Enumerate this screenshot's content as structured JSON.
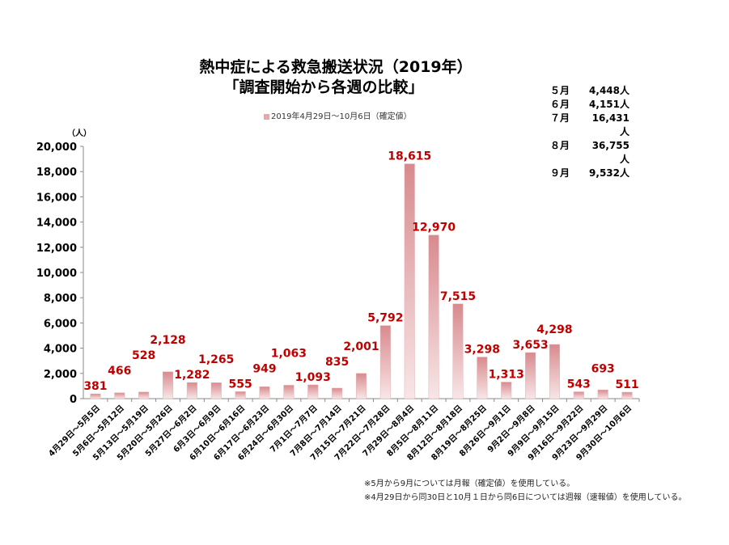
{
  "chart_data": {
    "type": "bar",
    "title": "熱中症による救急搬送状況（2019年）",
    "subtitle": "「調査開始から各週の比較」",
    "legend": "2019年4月29日～10月6日（確定値）",
    "legend_position": "top",
    "ylabel": "（人）",
    "ylim": [
      0,
      20000
    ],
    "yticks": [
      "0",
      "2,000",
      "4,000",
      "6,000",
      "8,000",
      "10,000",
      "12,000",
      "14,000",
      "16,000",
      "18,000",
      "20,000"
    ],
    "grid": false,
    "categories": [
      "4月29日～5月5日",
      "5月6日～5月12日",
      "5月13日～5月19日",
      "5月20日～5月26日",
      "5月27日～6月2日",
      "6月3日～6月9日",
      "6月10日～6月16日",
      "6月17日～6月23日",
      "6月24日～6月30日",
      "7月1日～7月7日",
      "7月8日～7月14日",
      "7月15日～7月21日",
      "7月22日～7月28日",
      "7月29日～8月4日",
      "8月5日～8月11日",
      "8月12日～8月18日",
      "8月19日～8月25日",
      "8月26日～9月1日",
      "9月2日～9月8日",
      "9月9日～9月15日",
      "9月16日～9月22日",
      "9月23日～9月29日",
      "9月30日～10月6日"
    ],
    "values": [
      381,
      466,
      528,
      2128,
      1282,
      1265,
      555,
      949,
      1063,
      1093,
      835,
      2001,
      5792,
      18615,
      12970,
      7515,
      3298,
      1313,
      3653,
      4298,
      543,
      693,
      511
    ],
    "labels": [
      "381",
      "466",
      "528",
      "2,128",
      "1,282",
      "1,265",
      "555",
      "949",
      "1,063",
      "1,093",
      "835",
      "2,001",
      "5,792",
      "18,615",
      "12,970",
      "7,515",
      "3,298",
      "1,313",
      "3,653",
      "4,298",
      "543",
      "693",
      "511"
    ],
    "bar_color": "#d88a8e",
    "label_color": "#c00000"
  },
  "monthly": [
    {
      "month": "５月",
      "value": "4,448人"
    },
    {
      "month": "６月",
      "value": "4,151人"
    },
    {
      "month": "７月",
      "value": "16,431人"
    },
    {
      "month": "８月",
      "value": "36,755人"
    },
    {
      "month": "９月",
      "value": "9,532人"
    }
  ],
  "notes": [
    "※5月から9月については月報（確定値）を使用している。",
    "※4月29日から同30日と10月１日から同6日については週報（速報値）を使用している。"
  ]
}
